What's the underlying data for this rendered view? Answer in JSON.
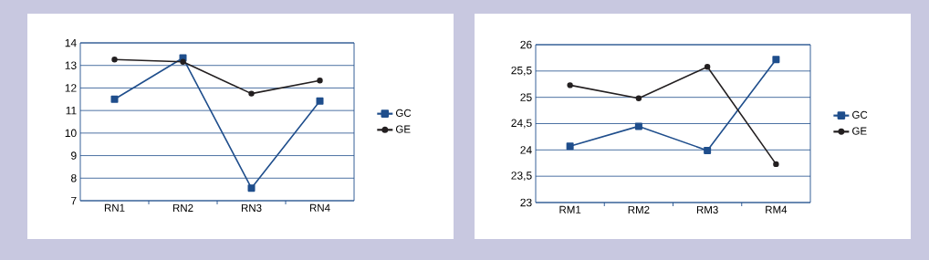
{
  "chart_data": [
    {
      "type": "line",
      "categories": [
        "RN1",
        "RN2",
        "RN3",
        "RN4"
      ],
      "series": [
        {
          "name": "GC",
          "color": "#1f4e8c",
          "marker": "square",
          "values": [
            11.5,
            13.33,
            7.56,
            11.42
          ]
        },
        {
          "name": "GE",
          "color": "#231f20",
          "marker": "circle",
          "values": [
            13.26,
            13.16,
            11.75,
            12.33
          ]
        }
      ],
      "ylim": [
        7,
        14
      ],
      "yticks": [
        7,
        8,
        9,
        10,
        11,
        12,
        13,
        14
      ],
      "grid": "y",
      "legend": "right",
      "line_style": "solid"
    },
    {
      "type": "line",
      "categories": [
        "RM1",
        "RM2",
        "RM3",
        "RM4"
      ],
      "series": [
        {
          "name": "GC",
          "color": "#1f4e8c",
          "marker": "square",
          "values": [
            24.07,
            24.45,
            23.99,
            25.72
          ]
        },
        {
          "name": "GE",
          "color": "#231f20",
          "marker": "circle",
          "values": [
            25.23,
            24.98,
            25.58,
            23.73
          ]
        }
      ],
      "ylim": [
        23,
        26
      ],
      "yticks": [
        23,
        {
          "value": 23.5,
          "label": "23,5"
        },
        24,
        {
          "value": 24.5,
          "label": "24,5"
        },
        25,
        {
          "value": 25.5,
          "label": "25,5"
        },
        26
      ],
      "grid": "y",
      "legend": "right",
      "line_style": "solid"
    }
  ]
}
